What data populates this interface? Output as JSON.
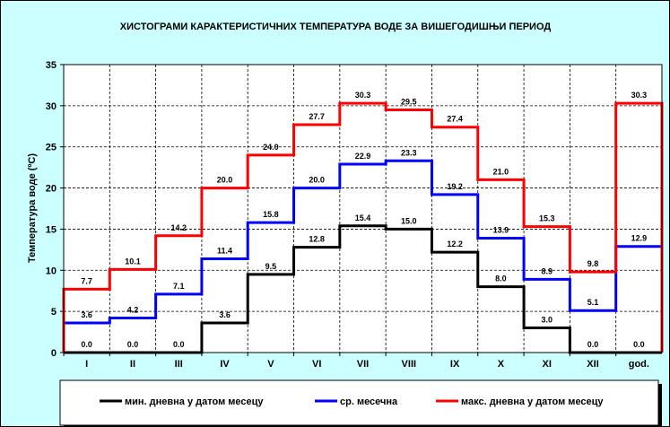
{
  "chart_data": {
    "type": "line",
    "step": true,
    "title": "ХИСТОГРАМИ КАРАКТЕРИСТИЧНИХ ТЕМПЕРАТУРА ВОДЕ ЗА ВИШЕГОДИШЊИ ПЕРИОД",
    "xlabel": "",
    "ylabel": "Температура воде (ºC)",
    "ylim": [
      0,
      35
    ],
    "yticks": [
      0,
      5,
      10,
      15,
      20,
      25,
      30,
      35
    ],
    "grid": true,
    "legend": "bottom",
    "categories": [
      "I",
      "II",
      "III",
      "IV",
      "V",
      "VI",
      "VII",
      "VIII",
      "IX",
      "X",
      "XI",
      "XII",
      "god."
    ],
    "series": [
      {
        "name": "мин. дневна у датом месецу",
        "color": "#000000",
        "values": [
          0.0,
          0.0,
          0.0,
          3.6,
          9.5,
          12.8,
          15.4,
          15.0,
          12.2,
          8.0,
          3.0,
          0.0,
          0.0
        ]
      },
      {
        "name": "ср. месечна",
        "color": "#0000ff",
        "values": [
          3.6,
          4.2,
          7.1,
          11.4,
          15.8,
          20.0,
          22.9,
          23.3,
          19.2,
          13.9,
          8.9,
          5.1,
          12.9
        ]
      },
      {
        "name": "макс. дневна у датом месецу",
        "color": "#ff0000",
        "values": [
          7.7,
          10.1,
          14.2,
          20.0,
          24.0,
          27.7,
          30.3,
          29.5,
          27.4,
          21.0,
          15.3,
          9.8,
          30.3
        ]
      }
    ]
  }
}
